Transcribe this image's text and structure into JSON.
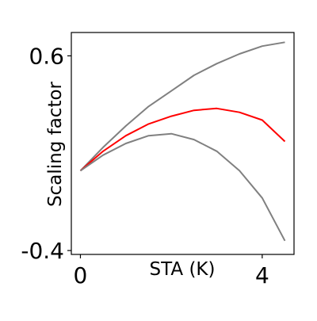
{
  "chart_data": {
    "type": "line",
    "title": "",
    "xlabel": "STA (K)",
    "ylabel": "Scaling factor",
    "xlim": [
      -0.2,
      4.7
    ],
    "ylim": [
      -0.42,
      0.72
    ],
    "x_ticks": [
      0,
      4
    ],
    "x_tick_labels": [
      "0",
      "4"
    ],
    "y_ticks": [
      0.6,
      -0.4
    ],
    "y_tick_labels": [
      "0.6",
      "-0.4"
    ],
    "grid": false,
    "legend": "none",
    "series": [
      {
        "color": "#808080",
        "x": [
          0,
          0.5,
          1,
          1.5,
          2,
          2.5,
          3,
          3.5,
          4,
          4.5
        ],
        "y": [
          0.01,
          0.13,
          0.24,
          0.34,
          0.42,
          0.5,
          0.56,
          0.61,
          0.65,
          0.67
        ]
      },
      {
        "color": "#ff0000",
        "x": [
          0,
          0.5,
          1,
          1.5,
          2,
          2.5,
          3,
          3.5,
          4,
          4.5
        ],
        "y": [
          0.01,
          0.11,
          0.19,
          0.25,
          0.29,
          0.32,
          0.33,
          0.31,
          0.27,
          0.16
        ]
      },
      {
        "color": "#808080",
        "x": [
          0,
          0.5,
          1,
          1.5,
          2,
          2.5,
          3,
          3.5,
          4,
          4.5
        ],
        "y": [
          0.01,
          0.09,
          0.15,
          0.19,
          0.2,
          0.17,
          0.11,
          0.01,
          -0.13,
          -0.35
        ]
      }
    ]
  }
}
